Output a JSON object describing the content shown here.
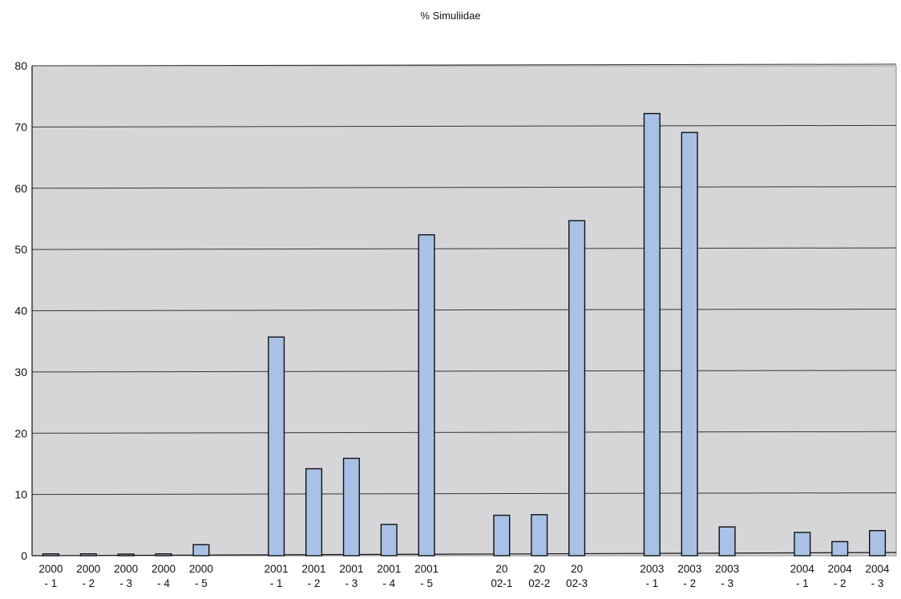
{
  "chart_data": {
    "type": "bar",
    "title": "% Simuliidae",
    "xlabel": "",
    "ylabel": "",
    "ylim": [
      0,
      80
    ],
    "yticks": [
      0,
      10,
      20,
      30,
      40,
      50,
      60,
      70,
      80
    ],
    "grid": true,
    "legend": "none",
    "colors": {
      "plot_background": "#d6d6d9",
      "bar_fill": "#a9c1e6",
      "bar_stroke": "#111111",
      "gridline": "#2f3a2f"
    },
    "categories": [
      [
        "2000",
        "- 1"
      ],
      [
        "2000",
        "- 2"
      ],
      [
        "2000",
        "- 3"
      ],
      [
        "2000",
        "- 4"
      ],
      [
        "2000",
        "- 5"
      ],
      [
        "",
        ""
      ],
      [
        "2001",
        "- 1"
      ],
      [
        "2001",
        "- 2"
      ],
      [
        "2001",
        "- 3"
      ],
      [
        "2001",
        "- 4"
      ],
      [
        "2001",
        "- 5"
      ],
      [
        "",
        ""
      ],
      [
        "20",
        "02-1"
      ],
      [
        "20",
        "02-2"
      ],
      [
        "20",
        "02-3"
      ],
      [
        "",
        ""
      ],
      [
        "2003",
        "- 1"
      ],
      [
        "2003",
        "- 2"
      ],
      [
        "2003",
        "- 3"
      ],
      [
        "",
        ""
      ],
      [
        "2004",
        "- 1"
      ],
      [
        "2004",
        "- 2"
      ],
      [
        "2004",
        "- 3"
      ]
    ],
    "values": [
      0.3,
      0.3,
      0,
      0.3,
      1.8,
      null,
      35.7,
      14.2,
      15.9,
      5.1,
      52.4,
      null,
      6.6,
      6.7,
      54.7,
      null,
      72.2,
      69.1,
      4.7,
      null,
      3.8,
      2.3,
      4.1
    ]
  }
}
